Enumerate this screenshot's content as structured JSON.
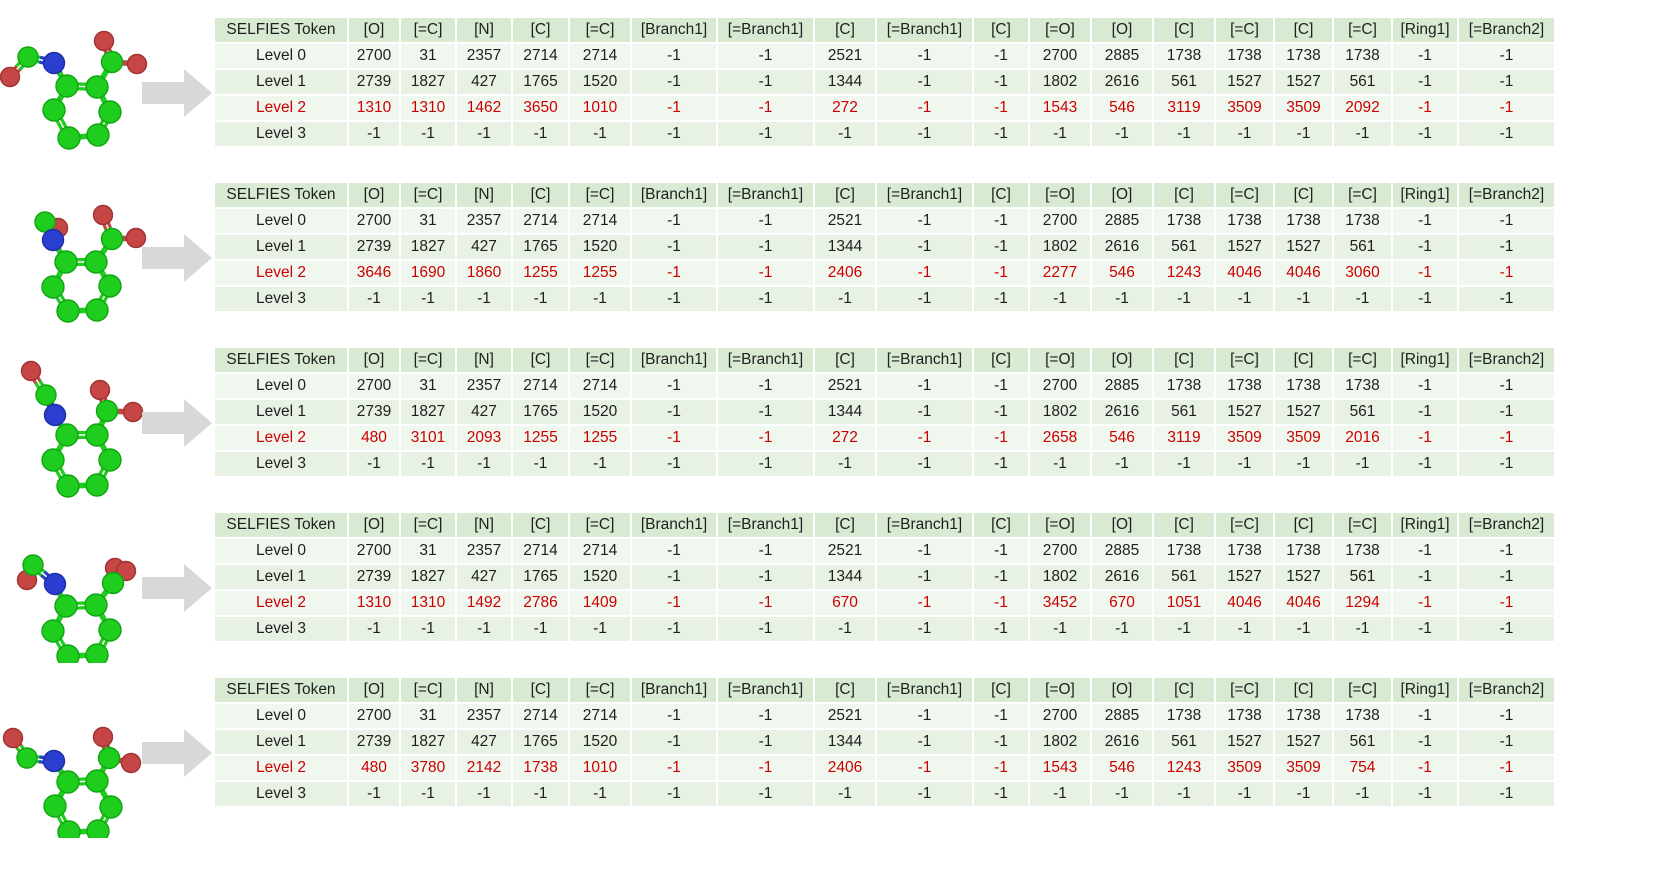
{
  "figure": {
    "description_visible_text_only": true,
    "arrow_icon": "right-block-arrow"
  },
  "colors": {
    "header_bg": "#d9ead3",
    "row_bg_light": "#f0f7ee",
    "row_bg_dark": "#e7f1e4",
    "level2_text": "#cc0000",
    "body_text": "#1f1f1f",
    "arrow_fill": "#d8d8d8",
    "atom_c": "#1ecd1e",
    "atom_n": "#2a3fd0",
    "atom_o": "#c64545"
  },
  "table_header": [
    "SELFIES Token",
    "[O]",
    "[=C]",
    "[N]",
    "[C]",
    "[=C]",
    "[Branch1]",
    "[=Branch1]",
    "[C]",
    "[=Branch1]",
    "[C]",
    "[=O]",
    "[O]",
    "[C]",
    "[=C]",
    "[C]",
    "[=C]",
    "[Ring1]",
    "[=Branch2]"
  ],
  "tables": [
    {
      "molecule": "molecule-conformer-1",
      "rows": [
        {
          "label": "Level 0",
          "highlight": false,
          "values": [
            "2700",
            "31",
            "2357",
            "2714",
            "2714",
            "-1",
            "-1",
            "2521",
            "-1",
            "-1",
            "2700",
            "2885",
            "1738",
            "1738",
            "1738",
            "1738",
            "-1",
            "-1"
          ]
        },
        {
          "label": "Level 1",
          "highlight": false,
          "values": [
            "2739",
            "1827",
            "427",
            "1765",
            "1520",
            "-1",
            "-1",
            "1344",
            "-1",
            "-1",
            "1802",
            "2616",
            "561",
            "1527",
            "1527",
            "561",
            "-1",
            "-1"
          ]
        },
        {
          "label": "Level 2",
          "highlight": true,
          "values": [
            "1310",
            "1310",
            "1462",
            "3650",
            "1010",
            "-1",
            "-1",
            "272",
            "-1",
            "-1",
            "1543",
            "546",
            "3119",
            "3509",
            "3509",
            "2092",
            "-1",
            "-1"
          ]
        },
        {
          "label": "Level 3",
          "highlight": false,
          "values": [
            "-1",
            "-1",
            "-1",
            "-1",
            "-1",
            "-1",
            "-1",
            "-1",
            "-1",
            "-1",
            "-1",
            "-1",
            "-1",
            "-1",
            "-1",
            "-1",
            "-1",
            "-1"
          ]
        }
      ]
    },
    {
      "molecule": "molecule-conformer-2",
      "rows": [
        {
          "label": "Level 0",
          "highlight": false,
          "values": [
            "2700",
            "31",
            "2357",
            "2714",
            "2714",
            "-1",
            "-1",
            "2521",
            "-1",
            "-1",
            "2700",
            "2885",
            "1738",
            "1738",
            "1738",
            "1738",
            "-1",
            "-1"
          ]
        },
        {
          "label": "Level 1",
          "highlight": false,
          "values": [
            "2739",
            "1827",
            "427",
            "1765",
            "1520",
            "-1",
            "-1",
            "1344",
            "-1",
            "-1",
            "1802",
            "2616",
            "561",
            "1527",
            "1527",
            "561",
            "-1",
            "-1"
          ]
        },
        {
          "label": "Level 2",
          "highlight": true,
          "values": [
            "3646",
            "1690",
            "1860",
            "1255",
            "1255",
            "-1",
            "-1",
            "2406",
            "-1",
            "-1",
            "2277",
            "546",
            "1243",
            "4046",
            "4046",
            "3060",
            "-1",
            "-1"
          ]
        },
        {
          "label": "Level 3",
          "highlight": false,
          "values": [
            "-1",
            "-1",
            "-1",
            "-1",
            "-1",
            "-1",
            "-1",
            "-1",
            "-1",
            "-1",
            "-1",
            "-1",
            "-1",
            "-1",
            "-1",
            "-1",
            "-1",
            "-1"
          ]
        }
      ]
    },
    {
      "molecule": "molecule-conformer-3",
      "rows": [
        {
          "label": "Level 0",
          "highlight": false,
          "values": [
            "2700",
            "31",
            "2357",
            "2714",
            "2714",
            "-1",
            "-1",
            "2521",
            "-1",
            "-1",
            "2700",
            "2885",
            "1738",
            "1738",
            "1738",
            "1738",
            "-1",
            "-1"
          ]
        },
        {
          "label": "Level 1",
          "highlight": false,
          "values": [
            "2739",
            "1827",
            "427",
            "1765",
            "1520",
            "-1",
            "-1",
            "1344",
            "-1",
            "-1",
            "1802",
            "2616",
            "561",
            "1527",
            "1527",
            "561",
            "-1",
            "-1"
          ]
        },
        {
          "label": "Level 2",
          "highlight": true,
          "values": [
            "480",
            "3101",
            "2093",
            "1255",
            "1255",
            "-1",
            "-1",
            "272",
            "-1",
            "-1",
            "2658",
            "546",
            "3119",
            "3509",
            "3509",
            "2016",
            "-1",
            "-1"
          ]
        },
        {
          "label": "Level 3",
          "highlight": false,
          "values": [
            "-1",
            "-1",
            "-1",
            "-1",
            "-1",
            "-1",
            "-1",
            "-1",
            "-1",
            "-1",
            "-1",
            "-1",
            "-1",
            "-1",
            "-1",
            "-1",
            "-1",
            "-1"
          ]
        }
      ]
    },
    {
      "molecule": "molecule-conformer-4",
      "rows": [
        {
          "label": "Level 0",
          "highlight": false,
          "values": [
            "2700",
            "31",
            "2357",
            "2714",
            "2714",
            "-1",
            "-1",
            "2521",
            "-1",
            "-1",
            "2700",
            "2885",
            "1738",
            "1738",
            "1738",
            "1738",
            "-1",
            "-1"
          ]
        },
        {
          "label": "Level 1",
          "highlight": false,
          "values": [
            "2739",
            "1827",
            "427",
            "1765",
            "1520",
            "-1",
            "-1",
            "1344",
            "-1",
            "-1",
            "1802",
            "2616",
            "561",
            "1527",
            "1527",
            "561",
            "-1",
            "-1"
          ]
        },
        {
          "label": "Level 2",
          "highlight": true,
          "values": [
            "1310",
            "1310",
            "1492",
            "2786",
            "1409",
            "-1",
            "-1",
            "670",
            "-1",
            "-1",
            "3452",
            "670",
            "1051",
            "4046",
            "4046",
            "1294",
            "-1",
            "-1"
          ]
        },
        {
          "label": "Level 3",
          "highlight": false,
          "values": [
            "-1",
            "-1",
            "-1",
            "-1",
            "-1",
            "-1",
            "-1",
            "-1",
            "-1",
            "-1",
            "-1",
            "-1",
            "-1",
            "-1",
            "-1",
            "-1",
            "-1",
            "-1"
          ]
        }
      ]
    },
    {
      "molecule": "molecule-conformer-5",
      "rows": [
        {
          "label": "Level 0",
          "highlight": false,
          "values": [
            "2700",
            "31",
            "2357",
            "2714",
            "2714",
            "-1",
            "-1",
            "2521",
            "-1",
            "-1",
            "2700",
            "2885",
            "1738",
            "1738",
            "1738",
            "1738",
            "-1",
            "-1"
          ]
        },
        {
          "label": "Level 1",
          "highlight": false,
          "values": [
            "2739",
            "1827",
            "427",
            "1765",
            "1520",
            "-1",
            "-1",
            "1344",
            "-1",
            "-1",
            "1802",
            "2616",
            "561",
            "1527",
            "1527",
            "561",
            "-1",
            "-1"
          ]
        },
        {
          "label": "Level 2",
          "highlight": true,
          "values": [
            "480",
            "3780",
            "2142",
            "1738",
            "1010",
            "-1",
            "-1",
            "2406",
            "-1",
            "-1",
            "1543",
            "546",
            "1243",
            "3509",
            "3509",
            "754",
            "-1",
            "-1"
          ]
        },
        {
          "label": "Level 3",
          "highlight": false,
          "values": [
            "-1",
            "-1",
            "-1",
            "-1",
            "-1",
            "-1",
            "-1",
            "-1",
            "-1",
            "-1",
            "-1",
            "-1",
            "-1",
            "-1",
            "-1",
            "-1",
            "-1",
            "-1"
          ]
        }
      ]
    }
  ],
  "molecules": [
    {
      "atoms": [
        [
          "O",
          10,
          64,
          9.5
        ],
        [
          "C",
          28,
          44,
          10
        ],
        [
          "N",
          54,
          50,
          10.5
        ],
        [
          "C",
          67,
          73,
          11
        ],
        [
          "C",
          97,
          74,
          11
        ],
        [
          "C",
          110,
          99,
          11
        ],
        [
          "C",
          98,
          122,
          11
        ],
        [
          "C",
          69,
          125,
          11
        ],
        [
          "C",
          54,
          97,
          11
        ],
        [
          "O",
          104,
          28,
          9.5
        ],
        [
          "C",
          112,
          49,
          10.5
        ],
        [
          "O",
          137,
          51,
          9.5
        ]
      ],
      "bonds": [
        [
          0,
          1,
          2
        ],
        [
          1,
          2,
          2
        ],
        [
          2,
          3,
          1
        ],
        [
          3,
          4,
          2
        ],
        [
          4,
          5,
          1
        ],
        [
          5,
          6,
          2
        ],
        [
          6,
          7,
          1
        ],
        [
          7,
          8,
          2
        ],
        [
          8,
          3,
          1
        ],
        [
          4,
          10,
          1
        ],
        [
          10,
          9,
          2
        ],
        [
          10,
          11,
          1
        ]
      ]
    },
    {
      "atoms": [
        [
          "O",
          58,
          45,
          9.5
        ],
        [
          "C",
          45,
          39,
          10
        ],
        [
          "N",
          53,
          57,
          10.5
        ],
        [
          "C",
          66,
          79,
          11
        ],
        [
          "C",
          96,
          79,
          11
        ],
        [
          "C",
          110,
          103,
          11
        ],
        [
          "C",
          97,
          127,
          11
        ],
        [
          "C",
          68,
          128,
          11
        ],
        [
          "C",
          53,
          104,
          11
        ],
        [
          "O",
          103,
          32,
          9.5
        ],
        [
          "C",
          112,
          56,
          10.5
        ],
        [
          "O",
          136,
          55,
          9.5
        ]
      ],
      "bonds": [
        [
          1,
          0,
          1
        ],
        [
          1,
          2,
          2
        ],
        [
          2,
          3,
          1
        ],
        [
          3,
          4,
          2
        ],
        [
          4,
          5,
          1
        ],
        [
          5,
          6,
          2
        ],
        [
          6,
          7,
          1
        ],
        [
          7,
          8,
          2
        ],
        [
          8,
          3,
          1
        ],
        [
          4,
          10,
          1
        ],
        [
          10,
          9,
          2
        ],
        [
          10,
          11,
          1
        ]
      ]
    },
    {
      "atoms": [
        [
          "O",
          31,
          33,
          9.5
        ],
        [
          "C",
          46,
          57,
          10
        ],
        [
          "N",
          55,
          77,
          10.5
        ],
        [
          "C",
          67,
          97,
          11
        ],
        [
          "C",
          97,
          97,
          11
        ],
        [
          "C",
          110,
          122,
          11
        ],
        [
          "C",
          97,
          147,
          11
        ],
        [
          "C",
          68,
          148,
          11
        ],
        [
          "C",
          53,
          122,
          11
        ],
        [
          "O",
          100,
          52,
          9.5
        ],
        [
          "C",
          107,
          73,
          10.5
        ],
        [
          "O",
          133,
          74,
          9.5
        ]
      ],
      "bonds": [
        [
          0,
          1,
          2
        ],
        [
          1,
          2,
          2
        ],
        [
          2,
          3,
          1
        ],
        [
          3,
          4,
          2
        ],
        [
          4,
          5,
          1
        ],
        [
          5,
          6,
          2
        ],
        [
          6,
          7,
          1
        ],
        [
          7,
          8,
          2
        ],
        [
          8,
          3,
          1
        ],
        [
          4,
          10,
          1
        ],
        [
          10,
          9,
          2
        ],
        [
          10,
          11,
          1
        ]
      ]
    },
    {
      "atoms": [
        [
          "O",
          27,
          77,
          9.5
        ],
        [
          "C",
          33,
          62,
          10
        ],
        [
          "N",
          55,
          81,
          10.5
        ],
        [
          "C",
          66,
          103,
          11
        ],
        [
          "C",
          96,
          102,
          11
        ],
        [
          "C",
          110,
          127,
          11
        ],
        [
          "C",
          97,
          152,
          11
        ],
        [
          "C",
          68,
          153,
          11
        ],
        [
          "C",
          53,
          128,
          11
        ],
        [
          "O",
          115,
          65,
          9.5
        ],
        [
          "O",
          126,
          68,
          9.5
        ],
        [
          "C",
          113,
          80,
          10.5
        ]
      ],
      "bonds": [
        [
          0,
          1,
          2
        ],
        [
          1,
          2,
          2
        ],
        [
          2,
          3,
          1
        ],
        [
          3,
          4,
          2
        ],
        [
          4,
          5,
          1
        ],
        [
          5,
          6,
          2
        ],
        [
          6,
          7,
          1
        ],
        [
          7,
          8,
          2
        ],
        [
          8,
          3,
          1
        ],
        [
          4,
          11,
          1
        ],
        [
          11,
          9,
          2
        ],
        [
          11,
          10,
          1
        ]
      ]
    },
    {
      "atoms": [
        [
          "O",
          13,
          70,
          9.5
        ],
        [
          "C",
          27,
          90,
          10
        ],
        [
          "N",
          54,
          93,
          10.5
        ],
        [
          "C",
          68,
          114,
          11
        ],
        [
          "C",
          97,
          113,
          11
        ],
        [
          "C",
          111,
          139,
          11
        ],
        [
          "C",
          98,
          163,
          11
        ],
        [
          "C",
          69,
          164,
          11
        ],
        [
          "C",
          55,
          138,
          11
        ],
        [
          "O",
          103,
          69,
          9.5
        ],
        [
          "C",
          109,
          90,
          10.5
        ],
        [
          "O",
          131,
          95,
          9.5
        ]
      ],
      "bonds": [
        [
          0,
          1,
          2
        ],
        [
          1,
          2,
          2
        ],
        [
          2,
          3,
          1
        ],
        [
          3,
          4,
          2
        ],
        [
          4,
          5,
          1
        ],
        [
          5,
          6,
          2
        ],
        [
          6,
          7,
          1
        ],
        [
          7,
          8,
          2
        ],
        [
          8,
          3,
          1
        ],
        [
          4,
          10,
          1
        ],
        [
          10,
          9,
          2
        ],
        [
          10,
          11,
          1
        ]
      ]
    }
  ]
}
